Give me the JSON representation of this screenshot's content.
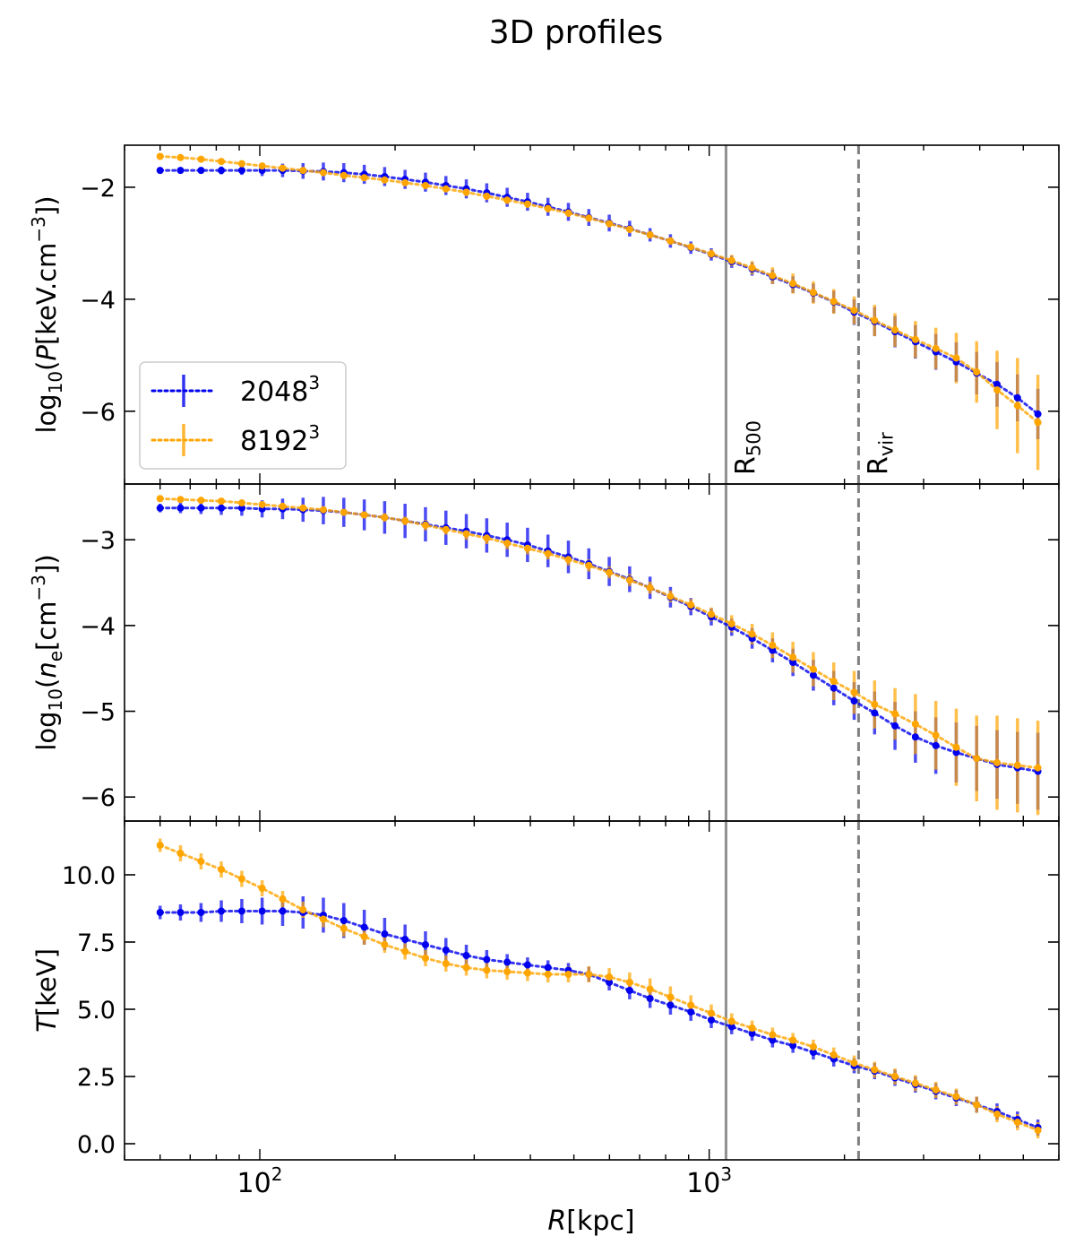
{
  "chart_data": {
    "type": "line",
    "title": "3D profiles",
    "xlabel": "R[kpc]",
    "x_scale": "log",
    "xlim": [
      50,
      6000
    ],
    "x_ticks": [
      {
        "value": 100,
        "base": "10",
        "exp": "2"
      },
      {
        "value": 1000,
        "base": "10",
        "exp": "3"
      }
    ],
    "vlines": [
      {
        "name": "R500",
        "label_main": "R",
        "label_sub": "500",
        "x": 1090,
        "style": "solid",
        "color": "#909090"
      },
      {
        "name": "Rvir",
        "label_main": "R",
        "label_sub": "vir",
        "x": 2150,
        "style": "dashed",
        "color": "#808080"
      }
    ],
    "legend": {
      "location": "lower-left of top panel",
      "entries": [
        {
          "base": "2048",
          "exp": "3",
          "color": "#0000ee"
        },
        {
          "base": "8192",
          "exp": "3",
          "color": "#ffa500"
        }
      ]
    },
    "x": [
      60,
      66.6,
      74,
      82.1,
      91.2,
      101.2,
      112.4,
      124.8,
      138.5,
      153.8,
      170.8,
      189.6,
      210.5,
      233.7,
      259.5,
      288.1,
      319.9,
      355.2,
      394.3,
      437.8,
      486.1,
      539.7,
      599.2,
      665.3,
      738.6,
      820,
      910.4,
      1010.8,
      1122.3,
      1246,
      1383.4,
      1535.9,
      1705.3,
      1893.3,
      2102,
      2333.8,
      2591.1,
      2876.8,
      3194,
      3546.2,
      3937.2,
      4371.3,
      4853.3,
      5388.4
    ],
    "panels": [
      {
        "name": "pressure",
        "ylabel": {
          "pre": "log",
          "sub": "10",
          "open": "(",
          "var": "P",
          "units": "[keV.cm",
          "uexp": "−3",
          "close": "])"
        },
        "ylim": [
          -7.3,
          -1.25
        ],
        "yticks": [
          {
            "value": -2,
            "label": "−2"
          },
          {
            "value": -4,
            "label": "−4"
          },
          {
            "value": -6,
            "label": "−6"
          }
        ],
        "series": [
          {
            "name": "2048^3",
            "color": "#0000ee",
            "y": [
              -1.7,
              -1.7,
              -1.7,
              -1.7,
              -1.7,
              -1.7,
              -1.7,
              -1.71,
              -1.72,
              -1.74,
              -1.77,
              -1.81,
              -1.86,
              -1.91,
              -1.97,
              -2.03,
              -2.1,
              -2.18,
              -2.26,
              -2.35,
              -2.44,
              -2.54,
              -2.64,
              -2.74,
              -2.85,
              -2.96,
              -3.08,
              -3.2,
              -3.33,
              -3.46,
              -3.6,
              -3.74,
              -3.89,
              -4.05,
              -4.23,
              -4.4,
              -4.58,
              -4.76,
              -4.94,
              -5.12,
              -5.32,
              -5.52,
              -5.76,
              -6.05
            ],
            "err": [
              0.05,
              0.05,
              0.06,
              0.07,
              0.08,
              0.1,
              0.12,
              0.14,
              0.16,
              0.17,
              0.17,
              0.17,
              0.17,
              0.17,
              0.17,
              0.17,
              0.17,
              0.17,
              0.16,
              0.16,
              0.16,
              0.15,
              0.15,
              0.14,
              0.12,
              0.12,
              0.11,
              0.11,
              0.11,
              0.12,
              0.13,
              0.15,
              0.17,
              0.2,
              0.23,
              0.26,
              0.28,
              0.3,
              0.32,
              0.35,
              0.38,
              0.4,
              0.42,
              0.45
            ]
          },
          {
            "name": "8192^3",
            "color": "#ffa500",
            "y": [
              -1.45,
              -1.47,
              -1.5,
              -1.54,
              -1.58,
              -1.62,
              -1.66,
              -1.7,
              -1.74,
              -1.79,
              -1.83,
              -1.87,
              -1.92,
              -1.97,
              -2.03,
              -2.09,
              -2.16,
              -2.23,
              -2.3,
              -2.38,
              -2.46,
              -2.55,
              -2.65,
              -2.75,
              -2.85,
              -2.96,
              -3.07,
              -3.19,
              -3.31,
              -3.44,
              -3.58,
              -3.72,
              -3.88,
              -4.04,
              -4.2,
              -4.38,
              -4.55,
              -4.72,
              -4.88,
              -5.05,
              -5.3,
              -5.62,
              -5.9,
              -6.2
            ],
            "err": [
              0.03,
              0.03,
              0.03,
              0.03,
              0.03,
              0.03,
              0.03,
              0.03,
              0.03,
              0.04,
              0.04,
              0.05,
              0.05,
              0.06,
              0.06,
              0.07,
              0.07,
              0.07,
              0.07,
              0.07,
              0.07,
              0.07,
              0.07,
              0.07,
              0.07,
              0.07,
              0.07,
              0.08,
              0.1,
              0.12,
              0.15,
              0.18,
              0.2,
              0.22,
              0.25,
              0.28,
              0.3,
              0.33,
              0.37,
              0.45,
              0.55,
              0.7,
              0.85,
              0.85
            ]
          }
        ]
      },
      {
        "name": "density",
        "ylabel": {
          "pre": "log",
          "sub": "10",
          "open": "(",
          "var": "n",
          "varsub": "e",
          "units": "[cm",
          "uexp": "−3",
          "close": "])"
        },
        "ylim": [
          -6.28,
          -2.35
        ],
        "yticks": [
          {
            "value": -3,
            "label": "−3"
          },
          {
            "value": -4,
            "label": "−4"
          },
          {
            "value": -5,
            "label": "−5"
          },
          {
            "value": -6,
            "label": "−6"
          }
        ],
        "series": [
          {
            "name": "2048^3",
            "color": "#0000ee",
            "y": [
              -2.63,
              -2.63,
              -2.63,
              -2.63,
              -2.63,
              -2.64,
              -2.64,
              -2.65,
              -2.66,
              -2.68,
              -2.71,
              -2.74,
              -2.78,
              -2.82,
              -2.86,
              -2.9,
              -2.95,
              -3.0,
              -3.06,
              -3.13,
              -3.2,
              -3.28,
              -3.37,
              -3.46,
              -3.56,
              -3.67,
              -3.78,
              -3.9,
              -4.02,
              -4.15,
              -4.29,
              -4.43,
              -4.58,
              -4.73,
              -4.88,
              -5.02,
              -5.17,
              -5.3,
              -5.4,
              -5.48,
              -5.55,
              -5.62,
              -5.66,
              -5.7
            ],
            "err": [
              0.05,
              0.06,
              0.07,
              0.08,
              0.09,
              0.1,
              0.12,
              0.14,
              0.16,
              0.17,
              0.18,
              0.19,
              0.2,
              0.2,
              0.2,
              0.2,
              0.2,
              0.2,
              0.2,
              0.19,
              0.19,
              0.18,
              0.17,
              0.15,
              0.13,
              0.12,
              0.1,
              0.1,
              0.1,
              0.12,
              0.14,
              0.16,
              0.18,
              0.2,
              0.22,
              0.25,
              0.28,
              0.3,
              0.33,
              0.35,
              0.38,
              0.4,
              0.42,
              0.45
            ]
          },
          {
            "name": "8192^3",
            "color": "#ffa500",
            "y": [
              -2.52,
              -2.53,
              -2.54,
              -2.55,
              -2.57,
              -2.59,
              -2.61,
              -2.63,
              -2.65,
              -2.68,
              -2.71,
              -2.74,
              -2.78,
              -2.83,
              -2.88,
              -2.93,
              -2.98,
              -3.04,
              -3.1,
              -3.16,
              -3.23,
              -3.3,
              -3.38,
              -3.47,
              -3.56,
              -3.66,
              -3.76,
              -3.87,
              -3.98,
              -4.1,
              -4.23,
              -4.37,
              -4.51,
              -4.65,
              -4.78,
              -4.92,
              -5.03,
              -5.15,
              -5.28,
              -5.42,
              -5.55,
              -5.6,
              -5.63,
              -5.66
            ],
            "err": [
              0.03,
              0.03,
              0.03,
              0.03,
              0.03,
              0.03,
              0.03,
              0.03,
              0.03,
              0.04,
              0.04,
              0.05,
              0.05,
              0.06,
              0.06,
              0.07,
              0.07,
              0.07,
              0.07,
              0.07,
              0.07,
              0.07,
              0.07,
              0.07,
              0.07,
              0.07,
              0.07,
              0.08,
              0.1,
              0.12,
              0.15,
              0.18,
              0.2,
              0.22,
              0.25,
              0.28,
              0.3,
              0.35,
              0.4,
              0.45,
              0.5,
              0.55,
              0.55,
              0.55
            ]
          }
        ]
      },
      {
        "name": "temperature",
        "ylabel": {
          "var": "T",
          "units": "[keV]"
        },
        "ylim": [
          -0.6,
          12.0
        ],
        "yticks": [
          {
            "value": 0,
            "label": "0.0"
          },
          {
            "value": 2.5,
            "label": "2.5"
          },
          {
            "value": 5,
            "label": "5.0"
          },
          {
            "value": 7.5,
            "label": "7.5"
          },
          {
            "value": 10,
            "label": "10.0"
          }
        ],
        "series": [
          {
            "name": "2048^3",
            "color": "#0000ee",
            "y": [
              8.6,
              8.6,
              8.6,
              8.65,
              8.65,
              8.65,
              8.65,
              8.6,
              8.5,
              8.3,
              8.05,
              7.8,
              7.6,
              7.4,
              7.2,
              7.0,
              6.85,
              6.75,
              6.65,
              6.55,
              6.45,
              6.3,
              6.0,
              5.7,
              5.4,
              5.15,
              4.9,
              4.6,
              4.35,
              4.1,
              3.85,
              3.65,
              3.4,
              3.15,
              2.9,
              2.7,
              2.45,
              2.2,
              1.95,
              1.7,
              1.45,
              1.2,
              0.9,
              0.6
            ],
            "err": [
              0.25,
              0.3,
              0.35,
              0.4,
              0.45,
              0.5,
              0.55,
              0.6,
              0.65,
              0.65,
              0.65,
              0.6,
              0.55,
              0.5,
              0.45,
              0.4,
              0.35,
              0.3,
              0.28,
              0.27,
              0.27,
              0.28,
              0.3,
              0.33,
              0.35,
              0.35,
              0.33,
              0.3,
              0.28,
              0.27,
              0.27,
              0.27,
              0.27,
              0.28,
              0.28,
              0.3,
              0.3,
              0.3,
              0.3,
              0.3,
              0.3,
              0.3,
              0.3,
              0.3
            ]
          },
          {
            "name": "8192^3",
            "color": "#ffa500",
            "y": [
              11.1,
              10.8,
              10.5,
              10.2,
              9.85,
              9.5,
              9.1,
              8.7,
              8.35,
              8.0,
              7.7,
              7.4,
              7.15,
              6.9,
              6.7,
              6.55,
              6.45,
              6.4,
              6.35,
              6.3,
              6.3,
              6.3,
              6.2,
              6.0,
              5.75,
              5.45,
              5.15,
              4.85,
              4.55,
              4.3,
              4.05,
              3.85,
              3.6,
              3.3,
              3.0,
              2.75,
              2.5,
              2.25,
              2.0,
              1.75,
              1.45,
              1.1,
              0.8,
              0.5
            ],
            "err": [
              0.25,
              0.3,
              0.3,
              0.3,
              0.3,
              0.3,
              0.3,
              0.3,
              0.3,
              0.3,
              0.3,
              0.3,
              0.3,
              0.3,
              0.3,
              0.3,
              0.3,
              0.3,
              0.3,
              0.3,
              0.3,
              0.3,
              0.33,
              0.37,
              0.4,
              0.4,
              0.37,
              0.33,
              0.3,
              0.28,
              0.27,
              0.27,
              0.27,
              0.28,
              0.28,
              0.3,
              0.3,
              0.3,
              0.3,
              0.3,
              0.3,
              0.3,
              0.3,
              0.3
            ]
          }
        ]
      }
    ]
  }
}
